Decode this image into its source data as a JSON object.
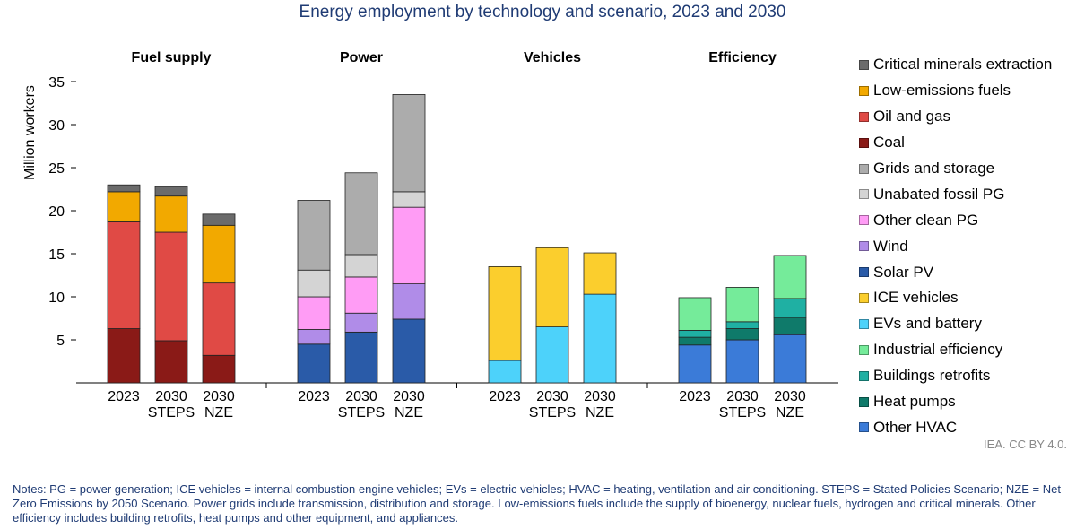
{
  "title": "Energy employment by technology and scenario, 2023 and 2030",
  "credit": "IEA. CC BY 4.0.",
  "notes": "Notes: PG = power generation; ICE vehicles = internal combustion engine vehicles; EVs = electric vehicles; HVAC = heating, ventilation and air conditioning. STEPS = Stated Policies Scenario; NZE = Net Zero Emissions by 2050 Scenario. Power grids include transmission, distribution and storage. Low-emissions fuels include the supply of bioenergy, nuclear fuels, hydrogen and critical minerals. Other efficiency includes building retrofits, heat pumps and other equipment, and appliances.",
  "legend": [
    {
      "label": "Critical minerals extraction",
      "color": "#6b6b6b"
    },
    {
      "label": "Low-emissions fuels",
      "color": "#f2a900"
    },
    {
      "label": "Oil and gas",
      "color": "#e04a45"
    },
    {
      "label": "Coal",
      "color": "#8a1a17"
    },
    {
      "label": "Grids and storage",
      "color": "#acacac"
    },
    {
      "label": "Unabated fossil PG",
      "color": "#d4d4d4"
    },
    {
      "label": "Other clean PG",
      "color": "#ff9cf5"
    },
    {
      "label": "Wind",
      "color": "#b08ce8"
    },
    {
      "label": "Solar PV",
      "color": "#2a5ba8"
    },
    {
      "label": "ICE vehicles",
      "color": "#fbce2d"
    },
    {
      "label": "EVs and battery",
      "color": "#4dd2fa"
    },
    {
      "label": "Industrial efficiency",
      "color": "#75eb9a"
    },
    {
      "label": "Buildings retrofits",
      "color": "#1fb0a3"
    },
    {
      "label": "Heat pumps",
      "color": "#0f7a6a"
    },
    {
      "label": "Other HVAC",
      "color": "#3b7bd8"
    }
  ],
  "chart_data": {
    "type": "bar",
    "stacked": true,
    "ylabel": "Million workers",
    "ylim": [
      0,
      35
    ],
    "yticks": [
      5,
      10,
      15,
      20,
      25,
      30,
      35
    ],
    "grid": false,
    "legend_position": "right",
    "groups": [
      {
        "name": "Fuel supply",
        "bars": [
          {
            "label": [
              "2023"
            ],
            "segments": [
              {
                "series": "Coal",
                "value": 6.3
              },
              {
                "series": "Oil and gas",
                "value": 12.4
              },
              {
                "series": "Low-emissions fuels",
                "value": 3.5
              },
              {
                "series": "Critical minerals extraction",
                "value": 0.8
              }
            ]
          },
          {
            "label": [
              "2030",
              "STEPS"
            ],
            "segments": [
              {
                "series": "Coal",
                "value": 4.9
              },
              {
                "series": "Oil and gas",
                "value": 12.6
              },
              {
                "series": "Low-emissions fuels",
                "value": 4.2
              },
              {
                "series": "Critical minerals extraction",
                "value": 1.1
              }
            ]
          },
          {
            "label": [
              "2030",
              "NZE"
            ],
            "segments": [
              {
                "series": "Coal",
                "value": 3.2
              },
              {
                "series": "Oil and gas",
                "value": 8.4
              },
              {
                "series": "Low-emissions fuels",
                "value": 6.7
              },
              {
                "series": "Critical minerals extraction",
                "value": 1.3
              }
            ]
          }
        ]
      },
      {
        "name": "Power",
        "bars": [
          {
            "label": [
              "2023"
            ],
            "segments": [
              {
                "series": "Solar PV",
                "value": 4.5
              },
              {
                "series": "Wind",
                "value": 1.7
              },
              {
                "series": "Other clean PG",
                "value": 3.8
              },
              {
                "series": "Unabated fossil PG",
                "value": 3.1
              },
              {
                "series": "Grids and storage",
                "value": 8.1
              }
            ]
          },
          {
            "label": [
              "2030",
              "STEPS"
            ],
            "segments": [
              {
                "series": "Solar PV",
                "value": 5.9
              },
              {
                "series": "Wind",
                "value": 2.2
              },
              {
                "series": "Other clean PG",
                "value": 4.2
              },
              {
                "series": "Unabated fossil PG",
                "value": 2.6
              },
              {
                "series": "Grids and storage",
                "value": 9.5
              }
            ]
          },
          {
            "label": [
              "2030",
              "NZE"
            ],
            "segments": [
              {
                "series": "Solar PV",
                "value": 7.4
              },
              {
                "series": "Wind",
                "value": 4.1
              },
              {
                "series": "Other clean PG",
                "value": 8.9
              },
              {
                "series": "Unabated fossil PG",
                "value": 1.8
              },
              {
                "series": "Grids and storage",
                "value": 11.3
              }
            ]
          }
        ]
      },
      {
        "name": "Vehicles",
        "bars": [
          {
            "label": [
              "2023"
            ],
            "segments": [
              {
                "series": "EVs and battery",
                "value": 2.6
              },
              {
                "series": "ICE vehicles",
                "value": 10.9
              }
            ]
          },
          {
            "label": [
              "2030",
              "STEPS"
            ],
            "segments": [
              {
                "series": "EVs and battery",
                "value": 6.5
              },
              {
                "series": "ICE vehicles",
                "value": 9.2
              }
            ]
          },
          {
            "label": [
              "2030",
              "NZE"
            ],
            "segments": [
              {
                "series": "EVs and battery",
                "value": 10.3
              },
              {
                "series": "ICE vehicles",
                "value": 4.8
              }
            ]
          }
        ]
      },
      {
        "name": "Efficiency",
        "bars": [
          {
            "label": [
              "2023"
            ],
            "segments": [
              {
                "series": "Other HVAC",
                "value": 4.4
              },
              {
                "series": "Heat pumps",
                "value": 0.9
              },
              {
                "series": "Buildings retrofits",
                "value": 0.8
              },
              {
                "series": "Industrial efficiency",
                "value": 3.8
              }
            ]
          },
          {
            "label": [
              "2030",
              "STEPS"
            ],
            "segments": [
              {
                "series": "Other HVAC",
                "value": 5.0
              },
              {
                "series": "Heat pumps",
                "value": 1.3
              },
              {
                "series": "Buildings retrofits",
                "value": 0.8
              },
              {
                "series": "Industrial efficiency",
                "value": 4.0
              }
            ]
          },
          {
            "label": [
              "2030",
              "NZE"
            ],
            "segments": [
              {
                "series": "Other HVAC",
                "value": 5.6
              },
              {
                "series": "Heat pumps",
                "value": 2.0
              },
              {
                "series": "Buildings retrofits",
                "value": 2.2
              },
              {
                "series": "Industrial efficiency",
                "value": 5.0
              }
            ]
          }
        ]
      }
    ]
  }
}
